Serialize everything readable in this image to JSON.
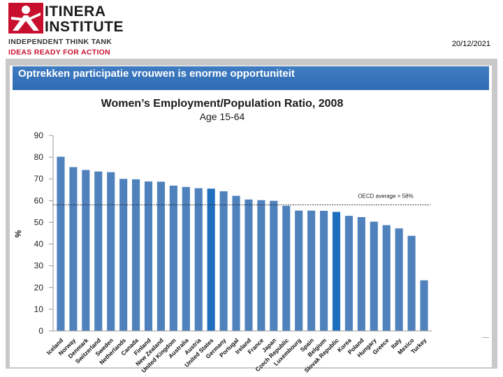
{
  "logo": {
    "name_line1": "ITINERA",
    "name_line2": "INSTITUTE",
    "tagline1": "INDEPENDENT THINK TANK",
    "tagline2": "IDEAS READY FOR ACTION",
    "brand_color": "#c8102e"
  },
  "date": "20/12/2021",
  "slide": {
    "title": "Optrekken participatie vrouwen is enorme opportuniteit",
    "banner_color": "#3674bb"
  },
  "chart_data": {
    "type": "bar",
    "title": "Women’s Employment/Population Ratio, 2008",
    "subtitle": "Age 15-64",
    "ylabel": "%",
    "xlabel": "",
    "ylim": [
      0,
      90
    ],
    "yticks": [
      0,
      10,
      20,
      30,
      40,
      50,
      60,
      70,
      80,
      90
    ],
    "grid": false,
    "bar_color": "#4f81bd",
    "highlight_color": "#1f6fbf",
    "highlight": [
      "United States",
      "Slovak Republic"
    ],
    "categories": [
      "Iceland",
      "Norway",
      "Denmark",
      "Switzerland",
      "Sweden",
      "Netherlands",
      "Canada",
      "Finland",
      "New Zealand",
      "United Kingdom",
      "Australia",
      "Austria",
      "United States",
      "Germany",
      "Portugal",
      "Ireland",
      "France",
      "Japan",
      "Czech Republic",
      "Luxembourg",
      "Spain",
      "Belgium",
      "Slovak Republic",
      "Korea",
      "Poland",
      "Hungary",
      "Greece",
      "Italy",
      "Mexico",
      "Turkey"
    ],
    "values": [
      80.2,
      75.4,
      74.1,
      73.4,
      73.1,
      70.0,
      69.8,
      68.8,
      68.7,
      66.9,
      66.3,
      65.7,
      65.5,
      64.3,
      62.2,
      60.5,
      60.2,
      59.9,
      57.6,
      55.4,
      55.4,
      55.3,
      54.8,
      53.0,
      52.4,
      50.3,
      48.7,
      47.2,
      43.8,
      23.3
    ],
    "reference_line": {
      "value": 58,
      "label": "OECD average = 58%"
    }
  }
}
